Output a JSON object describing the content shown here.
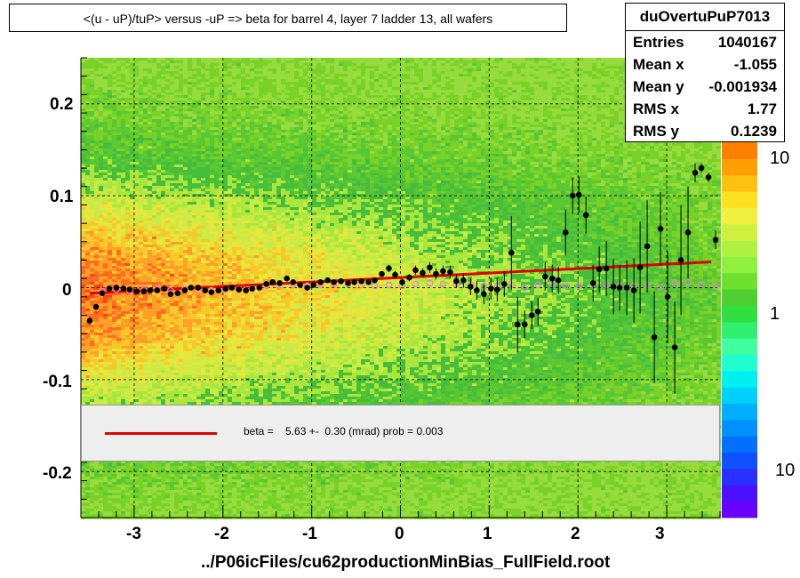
{
  "title": "<(u - uP)/tuP> versus  -uP => beta for barrel 4, layer 7 ladder 13, all wafers",
  "stats": {
    "name": "duOvertuPuP7013",
    "rows": [
      {
        "label": "Entries",
        "value": "1040167"
      },
      {
        "label": "Mean x",
        "value": "-1.055"
      },
      {
        "label": "Mean y",
        "value": "-0.001934"
      },
      {
        "label": "RMS x",
        "value": "1.77"
      },
      {
        "label": "RMS y",
        "value": "0.1239"
      }
    ]
  },
  "legend": {
    "text": "beta =    5.63 +-  0.30 (mrad) prob = 0.003",
    "color": "#dd0000"
  },
  "footer": "../P06icFiles/cu62productionMinBias_FullField.root",
  "colorbar": {
    "labels": [
      "10",
      "1",
      "10"
    ]
  },
  "chart_data": {
    "type": "heatmap",
    "xlim": [
      -3.6,
      3.6
    ],
    "ylim": [
      -0.25,
      0.25
    ],
    "x_ticks": [
      "-3",
      "-2",
      "-1",
      "0",
      "1",
      "2",
      "3"
    ],
    "y_ticks": [
      "0.2",
      "0.1",
      "0",
      "-0.1",
      "-0.2"
    ],
    "x_tick_values": [
      -3,
      -2,
      -1,
      0,
      1,
      2,
      3
    ],
    "y_tick_values": [
      0.2,
      0.1,
      0,
      -0.1,
      -0.2
    ],
    "grid": true,
    "fit_line": {
      "x": [
        -3.5,
        3.5
      ],
      "y": [
        -0.006,
        0.028
      ],
      "color": "#dd0000"
    },
    "profile_points": {
      "x": [
        -3.5,
        -3.43,
        -3.36,
        -3.28,
        -3.2,
        -3.12,
        -3.05,
        -2.97,
        -2.89,
        -2.82,
        -2.74,
        -2.66,
        -2.59,
        -2.51,
        -2.43,
        -2.36,
        -2.28,
        -2.2,
        -2.13,
        -2.05,
        -1.97,
        -1.9,
        -1.82,
        -1.74,
        -1.67,
        -1.59,
        -1.51,
        -1.44,
        -1.36,
        -1.28,
        -1.21,
        -1.13,
        -1.05,
        -0.98,
        -0.9,
        -0.82,
        -0.75,
        -0.67,
        -0.59,
        -0.52,
        -0.44,
        -0.36,
        -0.29,
        -0.21,
        -0.13,
        -0.06,
        0.02,
        0.1,
        0.17,
        0.25,
        0.33,
        0.4,
        0.48,
        0.56,
        0.63,
        0.71,
        0.79,
        0.86,
        0.94,
        1.02,
        1.09,
        1.17,
        1.25,
        1.32,
        1.4,
        1.48,
        1.55,
        1.63,
        1.71,
        1.78,
        1.86,
        1.94,
        2.01,
        2.09,
        2.17,
        2.24,
        2.32,
        2.4,
        2.47,
        2.55,
        2.63,
        2.7,
        2.78,
        2.86,
        2.93,
        3.01,
        3.09,
        3.16,
        3.24,
        3.32,
        3.39,
        3.47,
        3.55
      ],
      "y": [
        -0.036,
        -0.021,
        -0.006,
        -0.001,
        0.0,
        -0.001,
        -0.002,
        -0.004,
        -0.004,
        -0.003,
        -0.003,
        -0.001,
        -0.007,
        -0.006,
        -0.003,
        0.0,
        0.0,
        -0.003,
        -0.005,
        -0.003,
        -0.001,
        0.0,
        -0.002,
        -0.003,
        -0.001,
        0.0,
        0.004,
        0.006,
        0.005,
        0.01,
        0.006,
        0.003,
        0.0,
        0.003,
        0.006,
        0.008,
        0.006,
        0.007,
        0.005,
        0.006,
        0.007,
        0.006,
        0.008,
        0.015,
        0.021,
        0.014,
        0.006,
        0.011,
        0.019,
        0.016,
        0.022,
        0.015,
        0.018,
        0.017,
        0.007,
        0.008,
        0.001,
        -0.003,
        -0.007,
        -0.001,
        -0.002,
        0.004,
        0.038,
        -0.04,
        -0.04,
        -0.03,
        -0.026,
        0.012,
        0.01,
        0.008,
        0.06,
        0.1,
        0.101,
        0.079,
        0.005,
        0.02,
        0.021,
        0.001,
        0.0,
        0.0,
        -0.003,
        0.022,
        0.045,
        -0.054,
        0.064,
        -0.01,
        -0.065,
        0.03,
        0.06,
        0.125,
        0.13,
        0.12,
        0.052
      ],
      "errors": [
        0.004,
        0.003,
        0.002,
        0.002,
        0.002,
        0.002,
        0.002,
        0.002,
        0.002,
        0.002,
        0.002,
        0.002,
        0.002,
        0.002,
        0.002,
        0.002,
        0.002,
        0.002,
        0.002,
        0.002,
        0.002,
        0.002,
        0.002,
        0.002,
        0.002,
        0.002,
        0.002,
        0.002,
        0.002,
        0.002,
        0.002,
        0.002,
        0.002,
        0.002,
        0.002,
        0.002,
        0.002,
        0.003,
        0.003,
        0.003,
        0.003,
        0.003,
        0.003,
        0.003,
        0.004,
        0.004,
        0.004,
        0.004,
        0.005,
        0.005,
        0.006,
        0.006,
        0.006,
        0.007,
        0.007,
        0.008,
        0.009,
        0.01,
        0.011,
        0.012,
        0.013,
        0.014,
        0.04,
        0.03,
        0.015,
        0.015,
        0.015,
        0.015,
        0.015,
        0.015,
        0.025,
        0.02,
        0.02,
        0.02,
        0.02,
        0.025,
        0.03,
        0.03,
        0.025,
        0.03,
        0.035,
        0.05,
        0.05,
        0.05,
        0.04,
        0.05,
        0.05,
        0.06,
        0.05,
        0.01,
        0.005,
        0.005,
        0.01
      ]
    },
    "open_points": {
      "x": [
        -3.36,
        -3.2,
        -3.05,
        -2.89,
        -2.74,
        -2.59,
        -2.43,
        -2.28,
        -2.13,
        -1.97,
        -1.82,
        -1.67,
        -1.51,
        -1.36,
        -1.21,
        -1.05,
        -0.9,
        -0.75,
        -0.59,
        -0.44,
        -0.29,
        -0.13,
        0.02,
        0.17,
        0.33,
        0.48,
        0.63,
        0.79,
        0.94,
        1.09,
        1.25,
        1.4,
        1.55,
        1.71,
        1.86,
        2.01,
        2.17,
        2.32,
        2.47,
        2.63,
        2.78,
        2.93,
        3.09,
        3.24,
        3.39,
        3.55
      ],
      "y": [
        -0.004,
        -0.002,
        -0.003,
        -0.002,
        -0.002,
        -0.003,
        -0.002,
        -0.002,
        -0.003,
        -0.002,
        -0.002,
        -0.001,
        0.002,
        0.003,
        0.003,
        0.002,
        0.003,
        0.004,
        0.004,
        0.003,
        0.002,
        0.003,
        0.002,
        0.004,
        0.005,
        0.004,
        0.004,
        0.003,
        0.002,
        0.001,
        0.003,
        0.0,
        0.003,
        0.004,
        0.002,
        0.002,
        0.004,
        0.003,
        0.001,
        0.002,
        0.003,
        0.0,
        0.005,
        0.006,
        0.004,
        0.002
      ]
    }
  }
}
